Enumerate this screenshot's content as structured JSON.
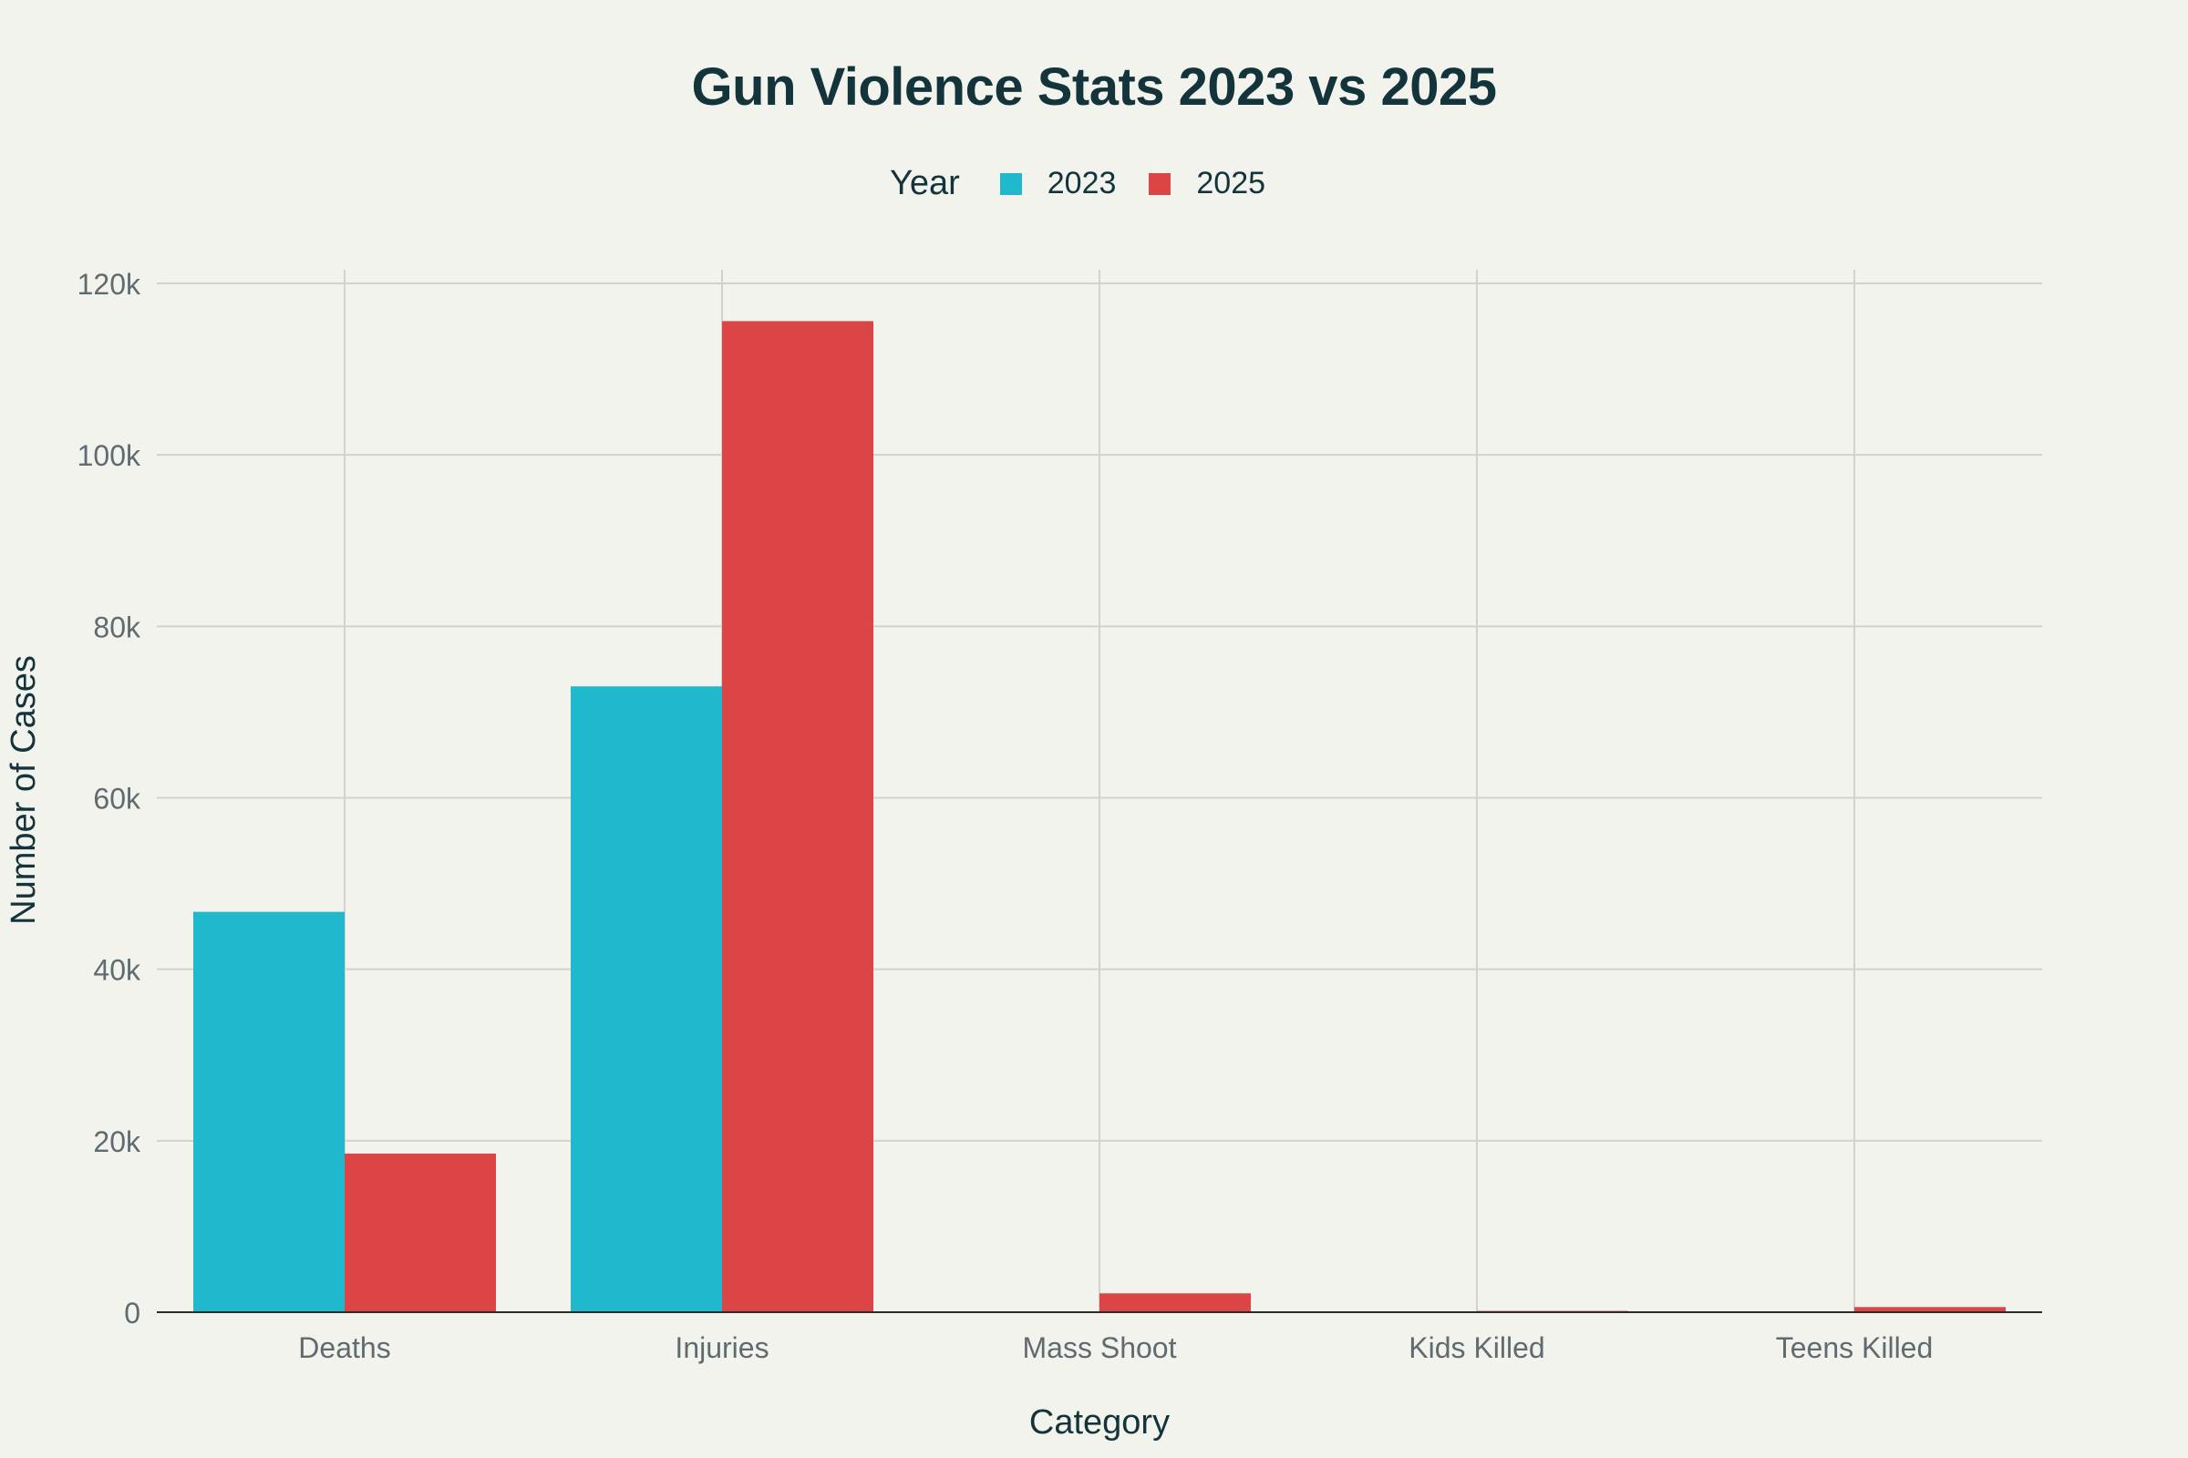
{
  "chart_data": {
    "type": "bar",
    "title": "Gun Violence Stats 2023 vs 2025",
    "xlabel": "Category",
    "ylabel": "Number of Cases",
    "legend_title": "Year",
    "legend_position": "top-center",
    "grid": true,
    "categories": [
      "Deaths",
      "Injuries",
      "Mass Shoot",
      "Kids Killed",
      "Teens Killed"
    ],
    "ylim": [
      0,
      120000
    ],
    "yticks": [
      0,
      20000,
      40000,
      60000,
      80000,
      100000,
      120000
    ],
    "ytick_labels": [
      "0",
      "20k",
      "40k",
      "60k",
      "80k",
      "100k",
      "120k"
    ],
    "series": [
      {
        "name": "2023",
        "color": "#1fb8cd",
        "values": [
          46700,
          73000,
          0,
          0,
          0
        ]
      },
      {
        "name": "2025",
        "color": "#db4545",
        "values": [
          18500,
          115600,
          2200,
          150,
          600
        ]
      }
    ]
  }
}
